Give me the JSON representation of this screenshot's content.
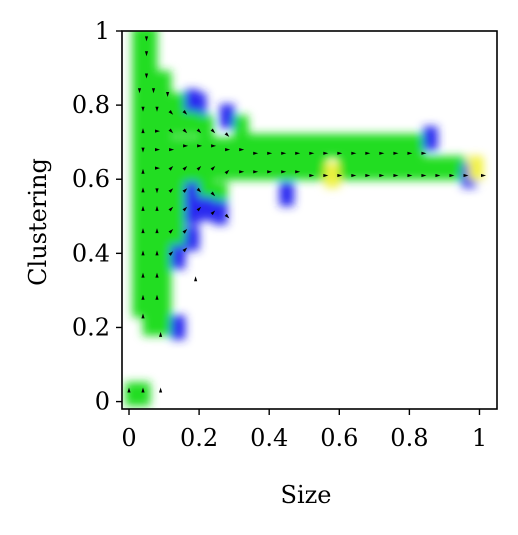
{
  "chart_data": {
    "type": "heatmap",
    "xlabel": "Size",
    "ylabel": "Clustering",
    "xlim": [
      -0.02,
      1.05
    ],
    "ylim": [
      -0.02,
      1.0
    ],
    "x_ticks": [
      {
        "v": 0,
        "label": "0"
      },
      {
        "v": 0.2,
        "label": "0.2"
      },
      {
        "v": 0.4,
        "label": "0.4"
      },
      {
        "v": 0.6,
        "label": "0.6"
      },
      {
        "v": 0.8,
        "label": "0.8"
      },
      {
        "v": 1,
        "label": "1"
      }
    ],
    "y_ticks": [
      {
        "v": 0,
        "label": "0"
      },
      {
        "v": 0.2,
        "label": "0.2"
      },
      {
        "v": 0.4,
        "label": "0.4"
      },
      {
        "v": 0.6,
        "label": "0.6"
      },
      {
        "v": 0.8,
        "label": "0.8"
      },
      {
        "v": 1,
        "label": "1"
      }
    ],
    "grid": false,
    "colors": {
      "green": "#22dd22",
      "blue": "#2a2af0",
      "yellow": "#f2f240",
      "arrow": "#000000"
    },
    "cells": [
      {
        "x": 0.03,
        "y": 0.98,
        "c": "green"
      },
      {
        "x": 0.06,
        "y": 0.98,
        "c": "green"
      },
      {
        "x": 0.03,
        "y": 0.92,
        "c": "green"
      },
      {
        "x": 0.06,
        "y": 0.92,
        "c": "green"
      },
      {
        "x": 0.03,
        "y": 0.86,
        "c": "green"
      },
      {
        "x": 0.06,
        "y": 0.86,
        "c": "green"
      },
      {
        "x": 0.1,
        "y": 0.86,
        "c": "green"
      },
      {
        "x": 0.03,
        "y": 0.8,
        "c": "green"
      },
      {
        "x": 0.06,
        "y": 0.8,
        "c": "green"
      },
      {
        "x": 0.1,
        "y": 0.8,
        "c": "green"
      },
      {
        "x": 0.14,
        "y": 0.8,
        "c": "green"
      },
      {
        "x": 0.18,
        "y": 0.81,
        "c": "blue"
      },
      {
        "x": 0.2,
        "y": 0.8,
        "c": "blue"
      },
      {
        "x": 0.03,
        "y": 0.74,
        "c": "green"
      },
      {
        "x": 0.06,
        "y": 0.74,
        "c": "green"
      },
      {
        "x": 0.1,
        "y": 0.74,
        "c": "green"
      },
      {
        "x": 0.14,
        "y": 0.75,
        "c": "green"
      },
      {
        "x": 0.18,
        "y": 0.75,
        "c": "green"
      },
      {
        "x": 0.22,
        "y": 0.74,
        "c": "green"
      },
      {
        "x": 0.28,
        "y": 0.77,
        "c": "blue"
      },
      {
        "x": 0.32,
        "y": 0.74,
        "c": "green"
      },
      {
        "x": 0.03,
        "y": 0.68,
        "c": "green"
      },
      {
        "x": 0.06,
        "y": 0.68,
        "c": "green"
      },
      {
        "x": 0.1,
        "y": 0.68,
        "c": "green"
      },
      {
        "x": 0.14,
        "y": 0.68,
        "c": "green"
      },
      {
        "x": 0.18,
        "y": 0.68,
        "c": "green"
      },
      {
        "x": 0.22,
        "y": 0.68,
        "c": "green"
      },
      {
        "x": 0.26,
        "y": 0.68,
        "c": "green"
      },
      {
        "x": 0.3,
        "y": 0.68,
        "c": "green"
      },
      {
        "x": 0.34,
        "y": 0.69,
        "c": "green"
      },
      {
        "x": 0.38,
        "y": 0.69,
        "c": "green"
      },
      {
        "x": 0.42,
        "y": 0.69,
        "c": "green"
      },
      {
        "x": 0.46,
        "y": 0.69,
        "c": "green"
      },
      {
        "x": 0.5,
        "y": 0.69,
        "c": "green"
      },
      {
        "x": 0.54,
        "y": 0.69,
        "c": "green"
      },
      {
        "x": 0.58,
        "y": 0.69,
        "c": "green"
      },
      {
        "x": 0.62,
        "y": 0.69,
        "c": "green"
      },
      {
        "x": 0.66,
        "y": 0.69,
        "c": "green"
      },
      {
        "x": 0.7,
        "y": 0.69,
        "c": "green"
      },
      {
        "x": 0.74,
        "y": 0.69,
        "c": "green"
      },
      {
        "x": 0.78,
        "y": 0.69,
        "c": "green"
      },
      {
        "x": 0.82,
        "y": 0.69,
        "c": "green"
      },
      {
        "x": 0.86,
        "y": 0.71,
        "c": "blue"
      },
      {
        "x": 0.03,
        "y": 0.62,
        "c": "green"
      },
      {
        "x": 0.06,
        "y": 0.62,
        "c": "green"
      },
      {
        "x": 0.1,
        "y": 0.62,
        "c": "green"
      },
      {
        "x": 0.14,
        "y": 0.62,
        "c": "green"
      },
      {
        "x": 0.18,
        "y": 0.62,
        "c": "green"
      },
      {
        "x": 0.22,
        "y": 0.62,
        "c": "green"
      },
      {
        "x": 0.26,
        "y": 0.63,
        "c": "green"
      },
      {
        "x": 0.3,
        "y": 0.63,
        "c": "green"
      },
      {
        "x": 0.34,
        "y": 0.63,
        "c": "green"
      },
      {
        "x": 0.38,
        "y": 0.63,
        "c": "green"
      },
      {
        "x": 0.42,
        "y": 0.63,
        "c": "green"
      },
      {
        "x": 0.46,
        "y": 0.63,
        "c": "green"
      },
      {
        "x": 0.5,
        "y": 0.63,
        "c": "green"
      },
      {
        "x": 0.54,
        "y": 0.63,
        "c": "green"
      },
      {
        "x": 0.58,
        "y": 0.61,
        "c": "yellow"
      },
      {
        "x": 0.62,
        "y": 0.63,
        "c": "green"
      },
      {
        "x": 0.66,
        "y": 0.63,
        "c": "green"
      },
      {
        "x": 0.7,
        "y": 0.63,
        "c": "green"
      },
      {
        "x": 0.74,
        "y": 0.63,
        "c": "green"
      },
      {
        "x": 0.78,
        "y": 0.63,
        "c": "green"
      },
      {
        "x": 0.82,
        "y": 0.63,
        "c": "green"
      },
      {
        "x": 0.86,
        "y": 0.63,
        "c": "green"
      },
      {
        "x": 0.9,
        "y": 0.63,
        "c": "green"
      },
      {
        "x": 0.94,
        "y": 0.63,
        "c": "green"
      },
      {
        "x": 0.97,
        "y": 0.61,
        "c": "blue"
      },
      {
        "x": 0.99,
        "y": 0.63,
        "c": "yellow"
      },
      {
        "x": 0.03,
        "y": 0.56,
        "c": "green"
      },
      {
        "x": 0.06,
        "y": 0.56,
        "c": "green"
      },
      {
        "x": 0.1,
        "y": 0.56,
        "c": "green"
      },
      {
        "x": 0.14,
        "y": 0.56,
        "c": "green"
      },
      {
        "x": 0.18,
        "y": 0.56,
        "c": "blue"
      },
      {
        "x": 0.22,
        "y": 0.56,
        "c": "green"
      },
      {
        "x": 0.26,
        "y": 0.56,
        "c": "green"
      },
      {
        "x": 0.45,
        "y": 0.56,
        "c": "blue"
      },
      {
        "x": 0.03,
        "y": 0.5,
        "c": "green"
      },
      {
        "x": 0.06,
        "y": 0.5,
        "c": "green"
      },
      {
        "x": 0.1,
        "y": 0.5,
        "c": "green"
      },
      {
        "x": 0.14,
        "y": 0.5,
        "c": "green"
      },
      {
        "x": 0.18,
        "y": 0.51,
        "c": "blue"
      },
      {
        "x": 0.22,
        "y": 0.52,
        "c": "blue"
      },
      {
        "x": 0.26,
        "y": 0.51,
        "c": "blue"
      },
      {
        "x": 0.03,
        "y": 0.44,
        "c": "green"
      },
      {
        "x": 0.06,
        "y": 0.44,
        "c": "green"
      },
      {
        "x": 0.1,
        "y": 0.44,
        "c": "green"
      },
      {
        "x": 0.14,
        "y": 0.44,
        "c": "green"
      },
      {
        "x": 0.18,
        "y": 0.44,
        "c": "blue"
      },
      {
        "x": 0.03,
        "y": 0.38,
        "c": "green"
      },
      {
        "x": 0.06,
        "y": 0.38,
        "c": "green"
      },
      {
        "x": 0.1,
        "y": 0.38,
        "c": "green"
      },
      {
        "x": 0.14,
        "y": 0.39,
        "c": "blue"
      },
      {
        "x": 0.03,
        "y": 0.32,
        "c": "green"
      },
      {
        "x": 0.06,
        "y": 0.32,
        "c": "green"
      },
      {
        "x": 0.1,
        "y": 0.32,
        "c": "green"
      },
      {
        "x": 0.03,
        "y": 0.26,
        "c": "green"
      },
      {
        "x": 0.06,
        "y": 0.26,
        "c": "green"
      },
      {
        "x": 0.1,
        "y": 0.26,
        "c": "green"
      },
      {
        "x": 0.06,
        "y": 0.21,
        "c": "green"
      },
      {
        "x": 0.1,
        "y": 0.21,
        "c": "green"
      },
      {
        "x": 0.14,
        "y": 0.2,
        "c": "blue"
      },
      {
        "x": 0.01,
        "y": 0.02,
        "c": "green"
      },
      {
        "x": 0.04,
        "y": 0.02,
        "c": "green"
      }
    ],
    "arrows": [
      {
        "x": 0.05,
        "y": 0.98,
        "dx": 0,
        "dy": -1
      },
      {
        "x": 0.05,
        "y": 0.94,
        "dx": 0,
        "dy": -1
      },
      {
        "x": 0.05,
        "y": 0.88,
        "dx": 0,
        "dy": -1
      },
      {
        "x": 0.03,
        "y": 0.84,
        "dx": 0,
        "dy": -1
      },
      {
        "x": 0.07,
        "y": 0.84,
        "dx": 0,
        "dy": -1
      },
      {
        "x": 0.11,
        "y": 0.83,
        "dx": 0,
        "dy": -1
      },
      {
        "x": 0.04,
        "y": 0.79,
        "dx": 0,
        "dy": -1
      },
      {
        "x": 0.08,
        "y": 0.79,
        "dx": 0,
        "dy": -1
      },
      {
        "x": 0.12,
        "y": 0.78,
        "dx": 1,
        "dy": -1
      },
      {
        "x": 0.16,
        "y": 0.78,
        "dx": 1,
        "dy": -1
      },
      {
        "x": 0.04,
        "y": 0.73,
        "dx": 0,
        "dy": 1
      },
      {
        "x": 0.08,
        "y": 0.73,
        "dx": 1,
        "dy": 0
      },
      {
        "x": 0.12,
        "y": 0.73,
        "dx": 1,
        "dy": -1
      },
      {
        "x": 0.16,
        "y": 0.73,
        "dx": 1,
        "dy": -1
      },
      {
        "x": 0.2,
        "y": 0.73,
        "dx": 1,
        "dy": -1
      },
      {
        "x": 0.24,
        "y": 0.73,
        "dx": 1,
        "dy": -1
      },
      {
        "x": 0.28,
        "y": 0.72,
        "dx": 1,
        "dy": -1
      },
      {
        "x": 0.04,
        "y": 0.68,
        "dx": 0,
        "dy": -1
      },
      {
        "x": 0.08,
        "y": 0.68,
        "dx": 1,
        "dy": 0
      },
      {
        "x": 0.12,
        "y": 0.68,
        "dx": 1,
        "dy": 0
      },
      {
        "x": 0.16,
        "y": 0.69,
        "dx": 1,
        "dy": 0
      },
      {
        "x": 0.2,
        "y": 0.69,
        "dx": 1,
        "dy": 0
      },
      {
        "x": 0.24,
        "y": 0.69,
        "dx": 1,
        "dy": 0
      },
      {
        "x": 0.28,
        "y": 0.68,
        "dx": 1,
        "dy": 0
      },
      {
        "x": 0.32,
        "y": 0.68,
        "dx": 1,
        "dy": 0
      },
      {
        "x": 0.36,
        "y": 0.67,
        "dx": 1,
        "dy": 0
      },
      {
        "x": 0.4,
        "y": 0.67,
        "dx": 1,
        "dy": 0
      },
      {
        "x": 0.44,
        "y": 0.67,
        "dx": 1,
        "dy": 0
      },
      {
        "x": 0.48,
        "y": 0.67,
        "dx": 1,
        "dy": 0
      },
      {
        "x": 0.52,
        "y": 0.67,
        "dx": 1,
        "dy": 0
      },
      {
        "x": 0.56,
        "y": 0.67,
        "dx": 1,
        "dy": 0
      },
      {
        "x": 0.6,
        "y": 0.67,
        "dx": 1,
        "dy": 0
      },
      {
        "x": 0.64,
        "y": 0.67,
        "dx": 1,
        "dy": 0
      },
      {
        "x": 0.68,
        "y": 0.67,
        "dx": 1,
        "dy": 0
      },
      {
        "x": 0.72,
        "y": 0.67,
        "dx": 1,
        "dy": 0
      },
      {
        "x": 0.76,
        "y": 0.67,
        "dx": 1,
        "dy": 0
      },
      {
        "x": 0.8,
        "y": 0.67,
        "dx": 1,
        "dy": 0
      },
      {
        "x": 0.84,
        "y": 0.67,
        "dx": 1,
        "dy": 0
      },
      {
        "x": 0.04,
        "y": 0.62,
        "dx": 0,
        "dy": 1
      },
      {
        "x": 0.08,
        "y": 0.63,
        "dx": 1,
        "dy": 0
      },
      {
        "x": 0.12,
        "y": 0.63,
        "dx": 1,
        "dy": 1
      },
      {
        "x": 0.16,
        "y": 0.63,
        "dx": 1,
        "dy": 1
      },
      {
        "x": 0.2,
        "y": 0.63,
        "dx": 1,
        "dy": 1
      },
      {
        "x": 0.24,
        "y": 0.63,
        "dx": 1,
        "dy": 1
      },
      {
        "x": 0.28,
        "y": 0.62,
        "dx": 1,
        "dy": 1
      },
      {
        "x": 0.32,
        "y": 0.62,
        "dx": 1,
        "dy": 0
      },
      {
        "x": 0.36,
        "y": 0.62,
        "dx": 1,
        "dy": 0
      },
      {
        "x": 0.4,
        "y": 0.62,
        "dx": 1,
        "dy": 0
      },
      {
        "x": 0.44,
        "y": 0.62,
        "dx": 1,
        "dy": 0
      },
      {
        "x": 0.48,
        "y": 0.62,
        "dx": 1,
        "dy": 0
      },
      {
        "x": 0.52,
        "y": 0.61,
        "dx": 1,
        "dy": 0
      },
      {
        "x": 0.56,
        "y": 0.61,
        "dx": 1,
        "dy": 0
      },
      {
        "x": 0.6,
        "y": 0.61,
        "dx": 1,
        "dy": 0
      },
      {
        "x": 0.64,
        "y": 0.61,
        "dx": 1,
        "dy": 0
      },
      {
        "x": 0.68,
        "y": 0.61,
        "dx": 1,
        "dy": 0
      },
      {
        "x": 0.72,
        "y": 0.61,
        "dx": 1,
        "dy": 0
      },
      {
        "x": 0.76,
        "y": 0.61,
        "dx": 1,
        "dy": 0
      },
      {
        "x": 0.8,
        "y": 0.61,
        "dx": 1,
        "dy": 0
      },
      {
        "x": 0.84,
        "y": 0.61,
        "dx": 1,
        "dy": 0
      },
      {
        "x": 0.88,
        "y": 0.61,
        "dx": 1,
        "dy": 0
      },
      {
        "x": 0.92,
        "y": 0.61,
        "dx": 1,
        "dy": 0
      },
      {
        "x": 0.96,
        "y": 0.61,
        "dx": 1,
        "dy": 0
      },
      {
        "x": 1.01,
        "y": 0.61,
        "dx": 1,
        "dy": 0
      },
      {
        "x": 0.04,
        "y": 0.57,
        "dx": 0,
        "dy": 1
      },
      {
        "x": 0.08,
        "y": 0.57,
        "dx": 0,
        "dy": -1
      },
      {
        "x": 0.12,
        "y": 0.57,
        "dx": 1,
        "dy": 1
      },
      {
        "x": 0.16,
        "y": 0.57,
        "dx": 1,
        "dy": 1
      },
      {
        "x": 0.2,
        "y": 0.57,
        "dx": 1,
        "dy": -1
      },
      {
        "x": 0.24,
        "y": 0.56,
        "dx": 1,
        "dy": -1
      },
      {
        "x": 0.04,
        "y": 0.52,
        "dx": 0,
        "dy": 1
      },
      {
        "x": 0.08,
        "y": 0.52,
        "dx": 0,
        "dy": 1
      },
      {
        "x": 0.12,
        "y": 0.52,
        "dx": 1,
        "dy": 1
      },
      {
        "x": 0.16,
        "y": 0.52,
        "dx": 1,
        "dy": 1
      },
      {
        "x": 0.2,
        "y": 0.52,
        "dx": 1,
        "dy": 1
      },
      {
        "x": 0.24,
        "y": 0.51,
        "dx": 1,
        "dy": 1
      },
      {
        "x": 0.28,
        "y": 0.5,
        "dx": 1,
        "dy": -1
      },
      {
        "x": 0.04,
        "y": 0.46,
        "dx": 0,
        "dy": 1
      },
      {
        "x": 0.08,
        "y": 0.46,
        "dx": 0,
        "dy": 1
      },
      {
        "x": 0.12,
        "y": 0.46,
        "dx": 1,
        "dy": 1
      },
      {
        "x": 0.16,
        "y": 0.46,
        "dx": 1,
        "dy": 1
      },
      {
        "x": 0.04,
        "y": 0.4,
        "dx": 0,
        "dy": 1
      },
      {
        "x": 0.08,
        "y": 0.4,
        "dx": 0,
        "dy": 1
      },
      {
        "x": 0.12,
        "y": 0.4,
        "dx": 1,
        "dy": 1
      },
      {
        "x": 0.16,
        "y": 0.41,
        "dx": 1,
        "dy": 1
      },
      {
        "x": 0.04,
        "y": 0.34,
        "dx": 0,
        "dy": 1
      },
      {
        "x": 0.08,
        "y": 0.34,
        "dx": 0,
        "dy": 1
      },
      {
        "x": 0.19,
        "y": 0.33,
        "dx": 0,
        "dy": 1
      },
      {
        "x": 0.04,
        "y": 0.28,
        "dx": 0,
        "dy": 1
      },
      {
        "x": 0.08,
        "y": 0.28,
        "dx": 0,
        "dy": 1
      },
      {
        "x": 0.04,
        "y": 0.23,
        "dx": 0,
        "dy": 1
      },
      {
        "x": 0.09,
        "y": 0.18,
        "dx": 0,
        "dy": 1
      },
      {
        "x": 0.0,
        "y": 0.03,
        "dx": 0,
        "dy": 1
      },
      {
        "x": 0.04,
        "y": 0.03,
        "dx": 0,
        "dy": 1
      },
      {
        "x": 0.09,
        "y": 0.03,
        "dx": 0,
        "dy": 1
      }
    ]
  }
}
